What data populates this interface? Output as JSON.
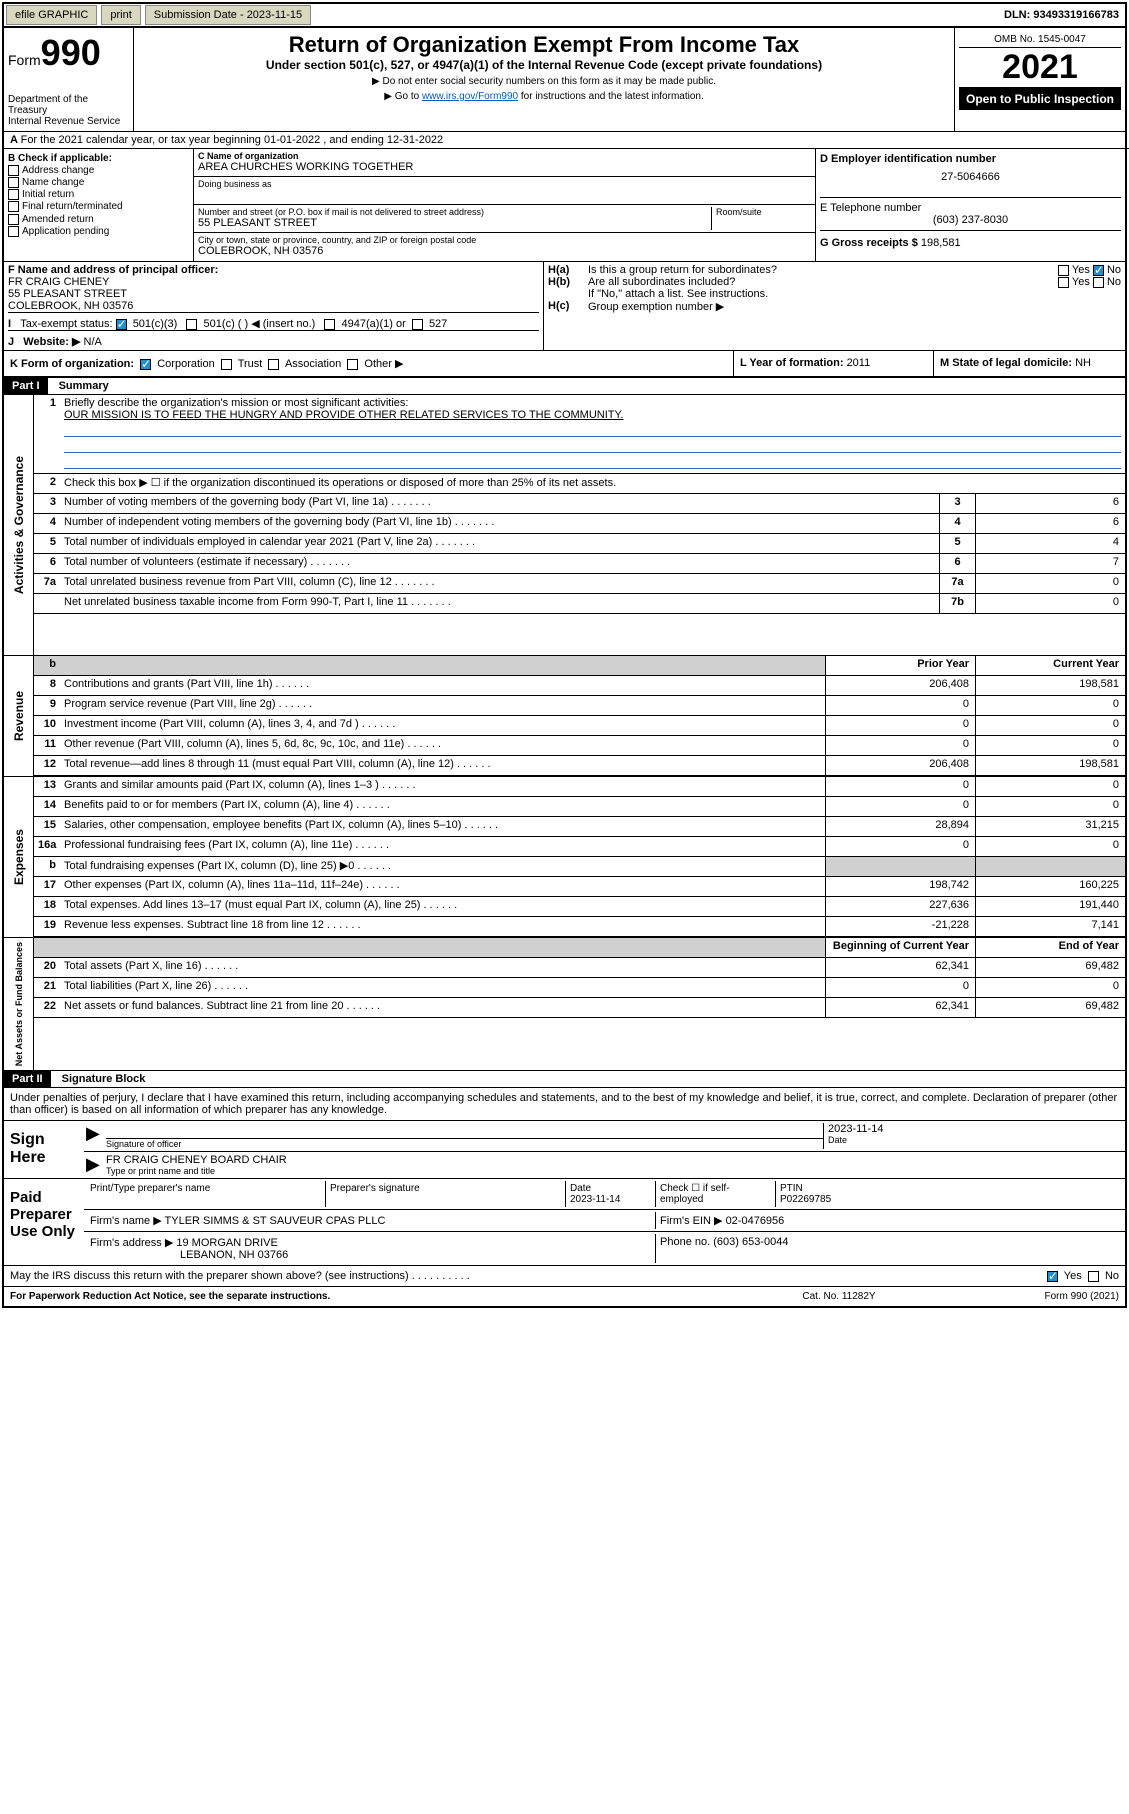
{
  "topbar": {
    "efile": "efile GRAPHIC",
    "print": "print",
    "submission_label": "Submission Date - 2023-11-15",
    "dln": "DLN: 93493319166783"
  },
  "header": {
    "form_word": "Form",
    "form_num": "990",
    "dept": "Department of the Treasury",
    "irs": "Internal Revenue Service",
    "title": "Return of Organization Exempt From Income Tax",
    "subtitle": "Under section 501(c), 527, or 4947(a)(1) of the Internal Revenue Code (except private foundations)",
    "instr1": "Do not enter social security numbers on this form as it may be made public.",
    "instr2_pre": "Go to ",
    "instr2_link": "www.irs.gov/Form990",
    "instr2_post": " for instructions and the latest information.",
    "omb": "OMB No. 1545-0047",
    "year": "2021",
    "open_public": "Open to Public Inspection"
  },
  "line_a": "For the 2021 calendar year, or tax year beginning 01-01-2022    , and ending 12-31-2022",
  "section_b": {
    "label": "B Check if applicable:",
    "items": [
      "Address change",
      "Name change",
      "Initial return",
      "Final return/terminated",
      "Amended return",
      "Application pending"
    ]
  },
  "section_c": {
    "name_label": "C Name of organization",
    "name": "AREA CHURCHES WORKING TOGETHER",
    "dba_label": "Doing business as",
    "dba": "",
    "addr_label": "Number and street (or P.O. box if mail is not delivered to street address)",
    "room_label": "Room/suite",
    "addr": "55 PLEASANT STREET",
    "city_label": "City or town, state or province, country, and ZIP or foreign postal code",
    "city": "COLEBROOK, NH  03576"
  },
  "section_d": {
    "label": "D Employer identification number",
    "ein": "27-5064666"
  },
  "section_e": {
    "label": "E Telephone number",
    "phone": "(603) 237-8030"
  },
  "section_g": {
    "label": "G Gross receipts $ ",
    "amount": "198,581"
  },
  "section_f": {
    "label": "F  Name and address of principal officer:",
    "name": "FR CRAIG CHENEY",
    "addr": "55 PLEASANT STREET",
    "city": "COLEBROOK, NH  03576"
  },
  "section_h": {
    "a": "Is this a group return for subordinates?",
    "a_no": true,
    "b": "Are all subordinates included?",
    "b_note": "If \"No,\" attach a list. See instructions.",
    "c": "Group exemption number ▶"
  },
  "section_i": {
    "label": "Tax-exempt status:",
    "opt1": "501(c)(3)",
    "opt2": "501(c) (  ) ◀ (insert no.)",
    "opt3": "4947(a)(1) or",
    "opt4": "527"
  },
  "section_j": {
    "label": "Website: ▶",
    "value": "N/A"
  },
  "section_k": {
    "label": "K Form of organization:",
    "opts": [
      "Corporation",
      "Trust",
      "Association",
      "Other ▶"
    ]
  },
  "section_l": {
    "label": "L Year of formation: ",
    "value": "2011"
  },
  "section_m": {
    "label": "M State of legal domicile: ",
    "value": "NH"
  },
  "part1": {
    "header": "Part I",
    "title": "Summary",
    "l1_label": "Briefly describe the organization's mission or most significant activities:",
    "l1_text": "OUR MISSION IS TO FEED THE HUNGRY AND PROVIDE OTHER RELATED SERVICES TO THE COMMUNITY.",
    "l2": "Check this box ▶ ☐  if the organization discontinued its operations or disposed of more than 25% of its net assets.",
    "lines_gov": [
      {
        "n": "3",
        "d": "Number of voting members of the governing body (Part VI, line 1a)",
        "box": "3",
        "v": "6"
      },
      {
        "n": "4",
        "d": "Number of independent voting members of the governing body (Part VI, line 1b)",
        "box": "4",
        "v": "6"
      },
      {
        "n": "5",
        "d": "Total number of individuals employed in calendar year 2021 (Part V, line 2a)",
        "box": "5",
        "v": "4"
      },
      {
        "n": "6",
        "d": "Total number of volunteers (estimate if necessary)",
        "box": "6",
        "v": "7"
      },
      {
        "n": "7a",
        "d": "Total unrelated business revenue from Part VIII, column (C), line 12",
        "box": "7a",
        "v": "0"
      },
      {
        "n": "",
        "d": "Net unrelated business taxable income from Form 990-T, Part I, line 11",
        "box": "7b",
        "v": "0"
      }
    ],
    "hdr_prior": "Prior Year",
    "hdr_current": "Current Year",
    "lines_rev": [
      {
        "n": "8",
        "d": "Contributions and grants (Part VIII, line 1h)",
        "p": "206,408",
        "c": "198,581"
      },
      {
        "n": "9",
        "d": "Program service revenue (Part VIII, line 2g)",
        "p": "0",
        "c": "0"
      },
      {
        "n": "10",
        "d": "Investment income (Part VIII, column (A), lines 3, 4, and 7d )",
        "p": "0",
        "c": "0"
      },
      {
        "n": "11",
        "d": "Other revenue (Part VIII, column (A), lines 5, 6d, 8c, 9c, 10c, and 11e)",
        "p": "0",
        "c": "0"
      },
      {
        "n": "12",
        "d": "Total revenue—add lines 8 through 11 (must equal Part VIII, column (A), line 12)",
        "p": "206,408",
        "c": "198,581"
      }
    ],
    "lines_exp": [
      {
        "n": "13",
        "d": "Grants and similar amounts paid (Part IX, column (A), lines 1–3 )",
        "p": "0",
        "c": "0"
      },
      {
        "n": "14",
        "d": "Benefits paid to or for members (Part IX, column (A), line 4)",
        "p": "0",
        "c": "0"
      },
      {
        "n": "15",
        "d": "Salaries, other compensation, employee benefits (Part IX, column (A), lines 5–10)",
        "p": "28,894",
        "c": "31,215"
      },
      {
        "n": "16a",
        "d": "Professional fundraising fees (Part IX, column (A), line 11e)",
        "p": "0",
        "c": "0"
      },
      {
        "n": "b",
        "d": "Total fundraising expenses (Part IX, column (D), line 25) ▶0",
        "p": "",
        "c": "",
        "grey": true
      },
      {
        "n": "17",
        "d": "Other expenses (Part IX, column (A), lines 11a–11d, 11f–24e)",
        "p": "198,742",
        "c": "160,225"
      },
      {
        "n": "18",
        "d": "Total expenses. Add lines 13–17 (must equal Part IX, column (A), line 25)",
        "p": "227,636",
        "c": "191,440"
      },
      {
        "n": "19",
        "d": "Revenue less expenses. Subtract line 18 from line 12",
        "p": "-21,228",
        "c": "7,141"
      }
    ],
    "hdr_begin": "Beginning of Current Year",
    "hdr_end": "End of Year",
    "lines_net": [
      {
        "n": "20",
        "d": "Total assets (Part X, line 16)",
        "p": "62,341",
        "c": "69,482"
      },
      {
        "n": "21",
        "d": "Total liabilities (Part X, line 26)",
        "p": "0",
        "c": "0"
      },
      {
        "n": "22",
        "d": "Net assets or fund balances. Subtract line 21 from line 20",
        "p": "62,341",
        "c": "69,482"
      }
    ],
    "side_gov": "Activities & Governance",
    "side_rev": "Revenue",
    "side_exp": "Expenses",
    "side_net": "Net Assets or Fund Balances"
  },
  "part2": {
    "header": "Part II",
    "title": "Signature Block",
    "declaration": "Under penalties of perjury, I declare that I have examined this return, including accompanying schedules and statements, and to the best of my knowledge and belief, it is true, correct, and complete. Declaration of preparer (other than officer) is based on all information of which preparer has any knowledge.",
    "sign_here": "Sign Here",
    "sig_officer": "Signature of officer",
    "sig_date_label": "Date",
    "sig_date": "2023-11-14",
    "sig_name": "FR CRAIG CHENEY  BOARD CHAIR",
    "sig_name_label": "Type or print name and title",
    "paid_prep": "Paid Preparer Use Only",
    "prep_headers": [
      "Print/Type preparer's name",
      "Preparer's signature",
      "Date",
      "",
      "PTIN"
    ],
    "prep_date": "2023-11-14",
    "prep_check": "Check ☐ if self-employed",
    "ptin": "P02269785",
    "firm_name_label": "Firm's name    ▶",
    "firm_name": "TYLER SIMMS & ST SAUVEUR CPAS PLLC",
    "firm_ein_label": "Firm's EIN ▶",
    "firm_ein": "02-0476956",
    "firm_addr_label": "Firm's address ▶",
    "firm_addr1": "19 MORGAN DRIVE",
    "firm_addr2": "LEBANON, NH  03766",
    "firm_phone_label": "Phone no. ",
    "firm_phone": "(603) 653-0044",
    "may_discuss": "May the IRS discuss this return with the preparer shown above? (see instructions)",
    "yes": "Yes",
    "no": "No"
  },
  "footer": {
    "left": "For Paperwork Reduction Act Notice, see the separate instructions.",
    "center": "Cat. No. 11282Y",
    "right": "Form 990 (2021)"
  }
}
